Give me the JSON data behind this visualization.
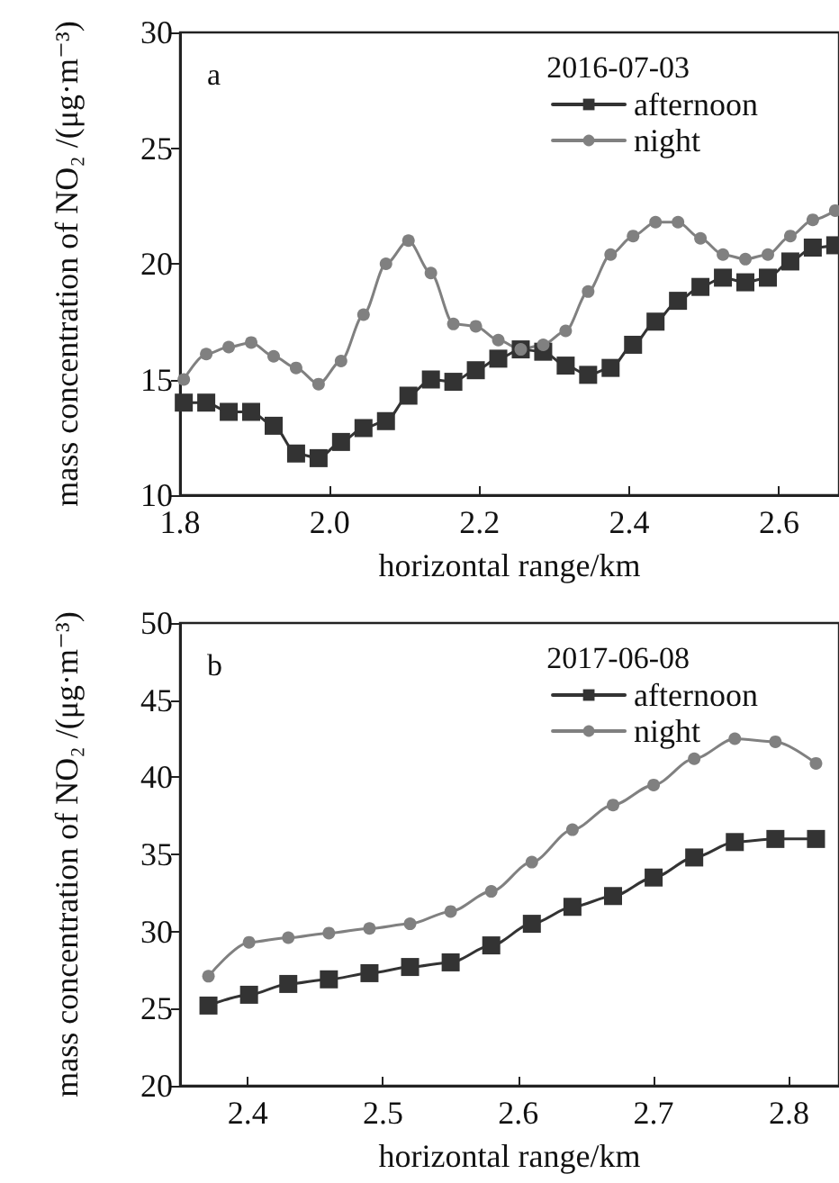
{
  "chart_data": [
    {
      "type": "line",
      "legend_title": "2016-07-03",
      "annotations": [
        "a"
      ],
      "xlabel": "horizontal range/km",
      "ylabel": "mass concentration of NO₂ /(μg·m⁻³)",
      "xlim": [
        1.8,
        2.68
      ],
      "xticks": [
        1.8,
        {
          "value": 2.0,
          "label": "2.0"
        },
        2.2,
        2.4,
        2.6
      ],
      "ylim": [
        10,
        30
      ],
      "yticks": [
        10,
        15,
        20,
        25,
        30
      ],
      "grid": false,
      "legend": "top right",
      "x": [
        1.805,
        1.835,
        1.865,
        1.895,
        1.925,
        1.955,
        1.985,
        2.015,
        2.045,
        2.075,
        2.105,
        2.135,
        2.165,
        2.195,
        2.225,
        2.255,
        2.285,
        2.315,
        2.345,
        2.375,
        2.405,
        2.435,
        2.465,
        2.495,
        2.525,
        2.555,
        2.585,
        2.615,
        2.645,
        2.675
      ],
      "series": [
        {
          "name": "afternoon",
          "color": "#333333",
          "marker": "square",
          "values": [
            14.0,
            14.0,
            13.6,
            13.6,
            13.0,
            11.8,
            11.6,
            12.3,
            12.9,
            13.2,
            14.3,
            15.0,
            14.9,
            15.4,
            15.9,
            16.3,
            16.2,
            15.6,
            15.2,
            15.5,
            16.5,
            17.5,
            18.4,
            19.0,
            19.4,
            19.2,
            19.4,
            20.1,
            20.7,
            20.8
          ]
        },
        {
          "name": "night",
          "color": "#808080",
          "marker": "circle",
          "values": [
            15.0,
            16.1,
            16.4,
            16.6,
            16.0,
            15.5,
            14.8,
            15.8,
            17.8,
            20.0,
            21.0,
            19.6,
            17.4,
            17.3,
            16.7,
            16.3,
            16.5,
            17.1,
            18.8,
            20.4,
            21.2,
            21.8,
            21.8,
            21.1,
            20.4,
            20.2,
            20.4,
            21.2,
            21.9,
            22.3
          ]
        }
      ]
    },
    {
      "type": "line",
      "legend_title": "2017-06-08",
      "annotations": [
        "b"
      ],
      "xlabel": "horizontal range/km",
      "ylabel": "mass concentration of NO₂ /(μg·m⁻³)",
      "xlim": [
        2.35,
        2.837
      ],
      "xticks": [
        2.4,
        2.5,
        2.6,
        2.7,
        2.8
      ],
      "ylim": [
        20,
        50
      ],
      "yticks": [
        20,
        25,
        30,
        35,
        40,
        45,
        50
      ],
      "grid": false,
      "legend": "top right",
      "x": [
        2.371,
        2.401,
        2.43,
        2.46,
        2.49,
        2.52,
        2.55,
        2.58,
        2.61,
        2.64,
        2.67,
        2.7,
        2.73,
        2.76,
        2.79,
        2.82
      ],
      "series": [
        {
          "name": "afternoon",
          "color": "#333333",
          "marker": "square",
          "values": [
            25.2,
            25.9,
            26.6,
            26.9,
            27.3,
            27.7,
            28.0,
            29.1,
            30.5,
            31.6,
            32.3,
            33.5,
            34.8,
            35.8,
            36.0,
            36.0
          ]
        },
        {
          "name": "night",
          "color": "#808080",
          "marker": "circle",
          "values": [
            27.1,
            29.3,
            29.6,
            29.9,
            30.2,
            30.5,
            31.3,
            32.6,
            34.5,
            36.6,
            38.2,
            39.5,
            41.2,
            42.5,
            42.3,
            40.9
          ]
        }
      ]
    }
  ]
}
